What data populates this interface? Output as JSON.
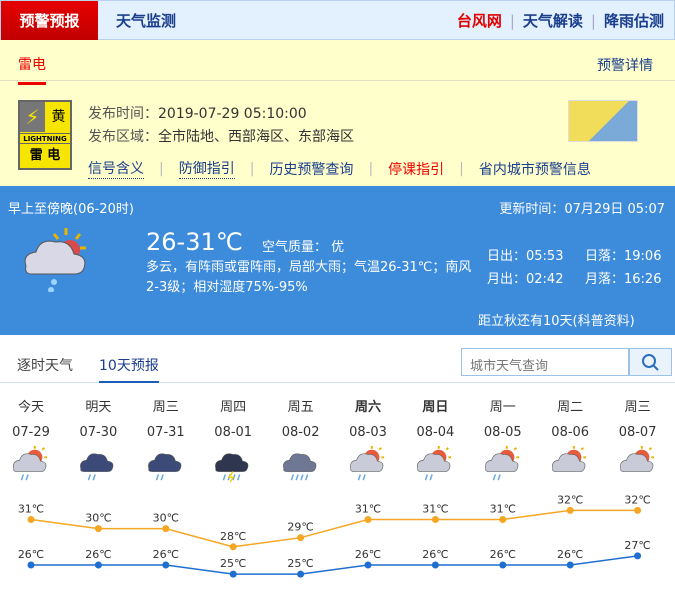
{
  "topnav": {
    "active": "预警预报",
    "tab2": "天气监测",
    "links": [
      "台风网",
      "天气解读",
      "降雨估测"
    ],
    "link_colors": [
      "#e00000",
      "#1a3e8c",
      "#1a3e8c"
    ]
  },
  "warning": {
    "type": "雷电",
    "detail_link": "预警详情",
    "badge": {
      "level": "黄",
      "en": "LIGHTNING",
      "cn": "雷 电"
    },
    "time_label": "发布时间：",
    "time": "2019-07-29 05:10:00",
    "area_label": "发布区域：",
    "area": "全市陆地、西部海区、东部海区",
    "links": [
      "信号含义",
      "防御指引",
      "历史预警查询",
      "停课指引",
      "省内城市预警信息"
    ]
  },
  "today": {
    "period": "早上至傍晚(06-20时)",
    "updated": "更新时间：07月29日 05:07",
    "temp": "26-31℃",
    "aqi": "空气质量： 优",
    "desc": "多云，有阵雨或雷阵雨，局部大雨；气温26-31℃；南风2-3级；相对湿度75%-95%",
    "sunrise": "日出：05:53",
    "sunset": "日落：19:06",
    "moonrise": "月出：02:42",
    "moonset": "月落：16:26",
    "note": "距立秋还有10天(科普资料)",
    "icon": "cloudy-sun-rain-icon"
  },
  "forecast_tabs": [
    "逐时天气",
    "10天预报"
  ],
  "search": {
    "placeholder": "城市天气查询"
  },
  "forecast": {
    "days": [
      {
        "week": "今天",
        "date": "07-29",
        "icon": "sun-cloud-rain",
        "hi": "31℃",
        "lo": "26℃",
        "bold": false
      },
      {
        "week": "明天",
        "date": "07-30",
        "icon": "cloud-rain",
        "hi": "30℃",
        "lo": "26℃",
        "bold": false
      },
      {
        "week": "周三",
        "date": "07-31",
        "icon": "cloud-rain",
        "hi": "30℃",
        "lo": "26℃",
        "bold": false
      },
      {
        "week": "周四",
        "date": "08-01",
        "icon": "thunder-heavy-rain",
        "hi": "28℃",
        "lo": "25℃",
        "bold": false
      },
      {
        "week": "周五",
        "date": "08-02",
        "icon": "cloud-heavy-rain",
        "hi": "29℃",
        "lo": "25℃",
        "bold": false
      },
      {
        "week": "周六",
        "date": "08-03",
        "icon": "sun-cloud-rain",
        "hi": "31℃",
        "lo": "26℃",
        "bold": true
      },
      {
        "week": "周日",
        "date": "08-04",
        "icon": "sun-cloud-rain",
        "hi": "31℃",
        "lo": "26℃",
        "bold": true
      },
      {
        "week": "周一",
        "date": "08-05",
        "icon": "sun-cloud-rain",
        "hi": "31℃",
        "lo": "26℃",
        "bold": false
      },
      {
        "week": "周二",
        "date": "08-06",
        "icon": "sun-cloud",
        "hi": "32℃",
        "lo": "26℃",
        "bold": false
      },
      {
        "week": "周三",
        "date": "08-07",
        "icon": "sun-cloud",
        "hi": "32℃",
        "lo": "27℃",
        "bold": false
      }
    ],
    "hi_values": [
      31,
      30,
      30,
      28,
      29,
      31,
      31,
      31,
      32,
      32
    ],
    "lo_values": [
      26,
      26,
      26,
      25,
      25,
      26,
      26,
      26,
      26,
      27
    ],
    "hi_color": "#f5a623",
    "lo_color": "#1f6fd1"
  }
}
